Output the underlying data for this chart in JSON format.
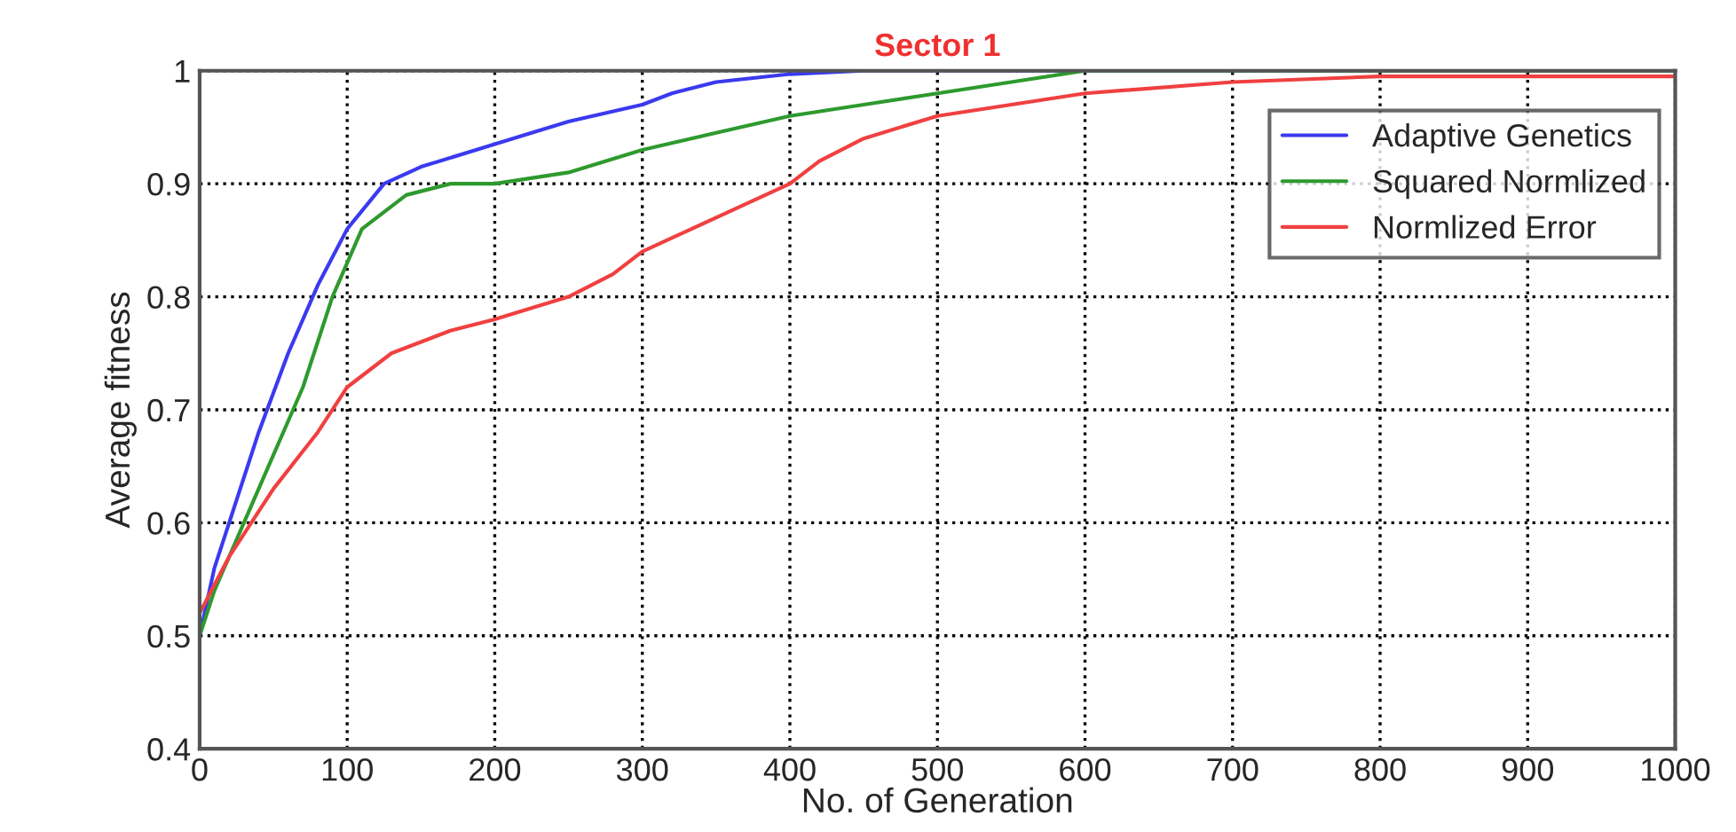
{
  "chart_data": {
    "type": "line",
    "title": "Sector 1",
    "xlabel": "No. of Generation",
    "ylabel": "Average fitness",
    "xlim": [
      0,
      1000
    ],
    "ylim": [
      0.4,
      1
    ],
    "xticks": [
      0,
      100,
      200,
      300,
      400,
      500,
      600,
      700,
      800,
      900,
      1000
    ],
    "yticks": [
      0.4,
      0.5,
      0.6,
      0.7,
      0.8,
      0.9,
      1
    ],
    "grid": true,
    "legend": "top right",
    "line_style": "solid",
    "series": [
      {
        "name": "Adaptive Genetics",
        "color": "#3a3af0",
        "x": [
          0,
          10,
          25,
          40,
          60,
          80,
          100,
          125,
          150,
          200,
          250,
          300,
          320,
          350,
          400,
          450,
          1000
        ],
        "values": [
          0.5,
          0.56,
          0.62,
          0.68,
          0.75,
          0.81,
          0.86,
          0.9,
          0.915,
          0.935,
          0.955,
          0.97,
          0.98,
          0.99,
          0.997,
          1.0,
          1.0
        ]
      },
      {
        "name": "Squared Normlized",
        "color": "#2e9a2e",
        "x": [
          0,
          10,
          30,
          50,
          70,
          90,
          110,
          140,
          170,
          200,
          250,
          300,
          350,
          400,
          450,
          500,
          550,
          600,
          1000
        ],
        "values": [
          0.5,
          0.54,
          0.6,
          0.66,
          0.72,
          0.8,
          0.86,
          0.89,
          0.9,
          0.9,
          0.91,
          0.93,
          0.945,
          0.96,
          0.97,
          0.98,
          0.99,
          1.0,
          1.0
        ]
      },
      {
        "name": "Normlized Error",
        "color": "#f04040",
        "x": [
          0,
          20,
          50,
          80,
          100,
          130,
          170,
          200,
          250,
          280,
          300,
          350,
          400,
          420,
          450,
          500,
          550,
          600,
          700,
          800,
          1000
        ],
        "values": [
          0.52,
          0.57,
          0.63,
          0.68,
          0.72,
          0.75,
          0.77,
          0.78,
          0.8,
          0.82,
          0.84,
          0.87,
          0.9,
          0.92,
          0.94,
          0.96,
          0.97,
          0.98,
          0.99,
          0.995,
          0.995
        ]
      }
    ]
  }
}
